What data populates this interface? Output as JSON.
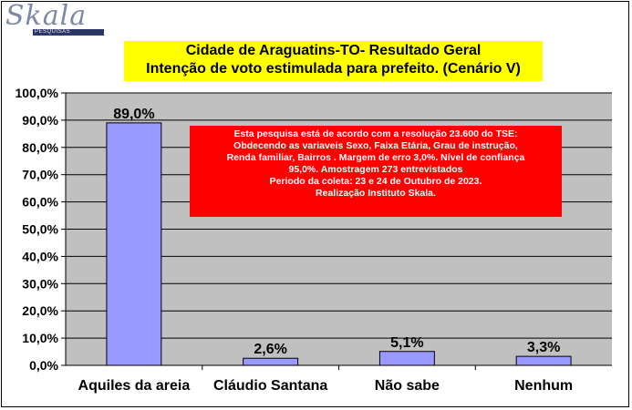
{
  "logo": {
    "word": "Skala",
    "sub": "PESQUISAS"
  },
  "colors": {
    "plot_bg": "#c0c0c0",
    "bar": "#9999ff",
    "title_bg": "#ffff00",
    "note_bg": "#ff0000"
  },
  "note": {
    "lines": [
      "Esta pesquisa está de acordo com a resolução 23.600 do TSE:",
      "Obdecendo as variaveis Sexo, Faixa Etária, Grau de instrução,",
      "Renda familiar, Bairros . Margem de erro 3,0%. Nível de confiança",
      "95,0%. Amostragem 273 entrevistados",
      "Periodo da coleta: 23 e 24 de Outubro de 2023.",
      "Realização Instituto Skala."
    ]
  },
  "chart_data": {
    "type": "bar",
    "title": [
      "Cidade de Araguatins-TO- Resultado Geral",
      "Intenção de voto estimulada para prefeito. (Cenário V)"
    ],
    "categories": [
      "Aquiles da areia",
      "Cláudio Santana",
      "Não sabe",
      "Nenhum"
    ],
    "values": [
      89.0,
      2.6,
      5.1,
      3.3
    ],
    "data_labels": [
      "89,0%",
      "2,6%",
      "5,1%",
      "3,3%"
    ],
    "ylim": [
      0,
      100
    ],
    "yticks": [
      "0,0%",
      "10,0%",
      "20,0%",
      "30,0%",
      "40,0%",
      "50,0%",
      "60,0%",
      "70,0%",
      "80,0%",
      "90,0%",
      "100,0%"
    ],
    "grid": true,
    "xlabel": "",
    "ylabel": ""
  }
}
